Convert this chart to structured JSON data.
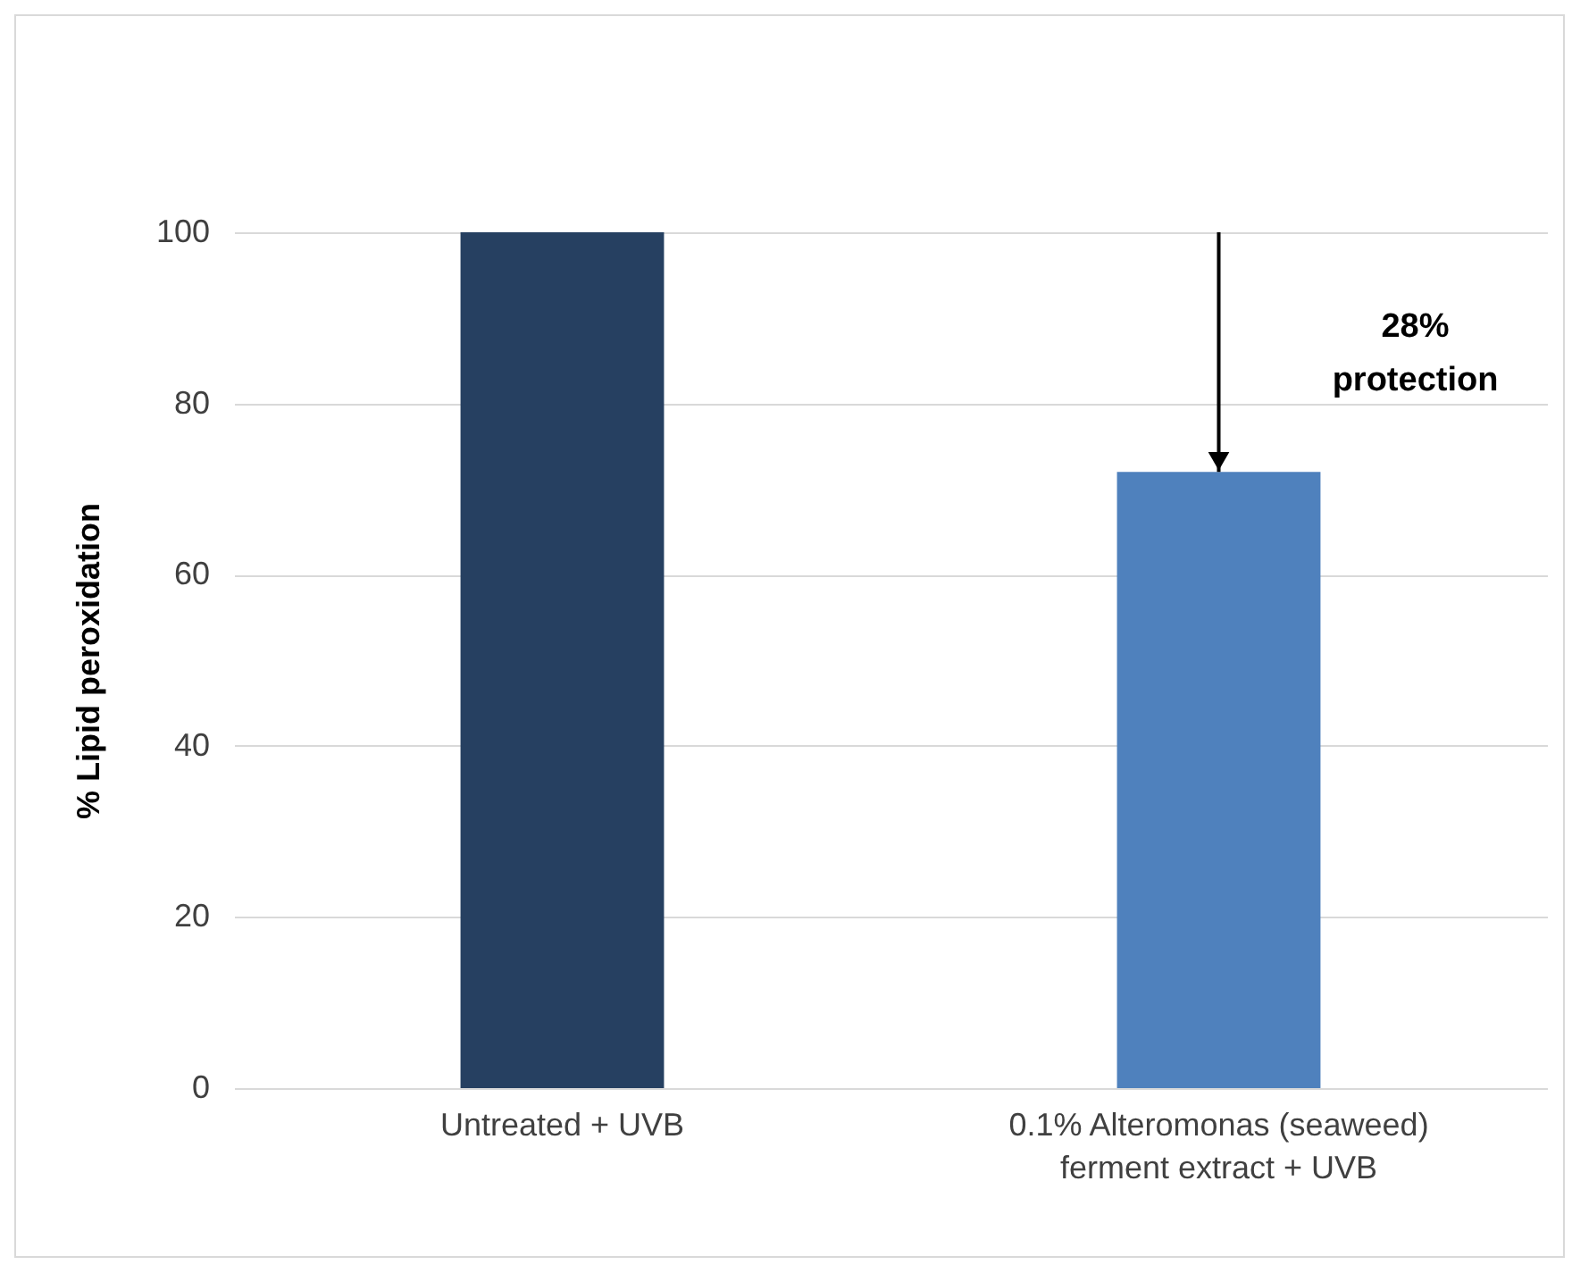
{
  "chart_data": {
    "type": "bar",
    "ylabel": "% Lipid peroxidation",
    "categories": [
      "Untreated + UVB",
      "0.1% Alteromonas (seaweed) ferment extract + UVB"
    ],
    "values": [
      100,
      72
    ],
    "colors": [
      "#264061",
      "#4f81bd"
    ],
    "ylim": [
      0,
      100
    ],
    "yticks": [
      0,
      20,
      40,
      60,
      80,
      100
    ],
    "grid": "y",
    "annotations": [
      "28% protection"
    ]
  }
}
